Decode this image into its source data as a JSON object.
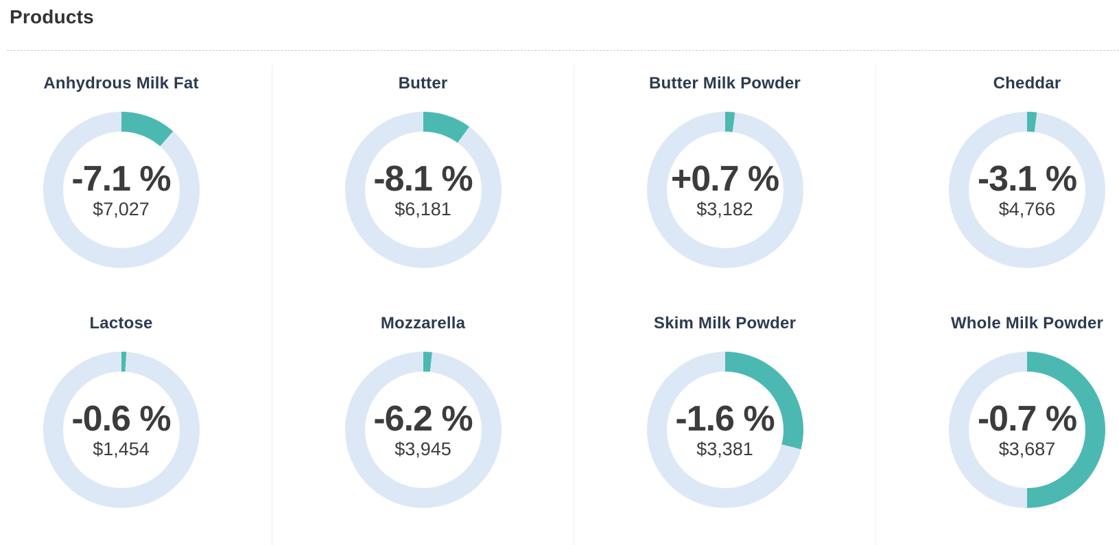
{
  "header": {
    "title": "Products"
  },
  "colors": {
    "arc_teal": "#4bb9b2",
    "ring_light": "#dde8f6",
    "value_text": "#3c3c3c",
    "card_title": "#2e3b4e",
    "heading": "#333333",
    "divider": "#ededed",
    "dashed_rule": "#c9c9c9"
  },
  "chart_data": [
    {
      "type": "donut",
      "title": "Anhydrous Milk Fat",
      "change_label": "-7.1 %",
      "change_pct": -7.1,
      "price_label": "$7,027",
      "price": 7027,
      "arc_fraction": 0.115,
      "legend": "none",
      "center_labels": true
    },
    {
      "type": "donut",
      "title": "Butter",
      "change_label": "-8.1 %",
      "change_pct": -8.1,
      "price_label": "$6,181",
      "price": 6181,
      "arc_fraction": 0.1,
      "legend": "none",
      "center_labels": true
    },
    {
      "type": "donut",
      "title": "Butter Milk Powder",
      "change_label": "+0.7 %",
      "change_pct": 0.7,
      "price_label": "$3,182",
      "price": 3182,
      "arc_fraction": 0.02,
      "legend": "none",
      "center_labels": true
    },
    {
      "type": "donut",
      "title": "Cheddar",
      "change_label": "-3.1 %",
      "change_pct": -3.1,
      "price_label": "$4,766",
      "price": 4766,
      "arc_fraction": 0.02,
      "legend": "none",
      "center_labels": true
    },
    {
      "type": "donut",
      "title": "Lactose",
      "change_label": "-0.6 %",
      "change_pct": -0.6,
      "price_label": "$1,454",
      "price": 1454,
      "arc_fraction": 0.01,
      "legend": "none",
      "center_labels": true
    },
    {
      "type": "donut",
      "title": "Mozzarella",
      "change_label": "-6.2 %",
      "change_pct": -6.2,
      "price_label": "$3,945",
      "price": 3945,
      "arc_fraction": 0.018,
      "legend": "none",
      "center_labels": true
    },
    {
      "type": "donut",
      "title": "Skim Milk Powder",
      "change_label": "-1.6 %",
      "change_pct": -1.6,
      "price_label": "$3,381",
      "price": 3381,
      "arc_fraction": 0.29,
      "legend": "none",
      "center_labels": true
    },
    {
      "type": "donut",
      "title": "Whole Milk Powder",
      "change_label": "-0.7 %",
      "change_pct": -0.7,
      "price_label": "$3,687",
      "price": 3687,
      "arc_fraction": 0.5,
      "legend": "none",
      "center_labels": true
    }
  ]
}
